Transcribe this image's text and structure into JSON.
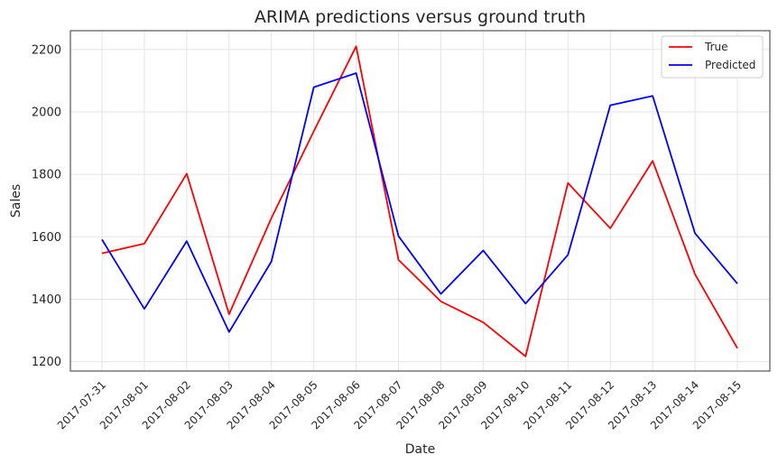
{
  "chart_data": {
    "type": "line",
    "title": "ARIMA predictions versus ground truth",
    "xlabel": "Date",
    "ylabel": "Sales",
    "x": [
      "2017-07-31",
      "2017-08-01",
      "2017-08-02",
      "2017-08-03",
      "2017-08-04",
      "2017-08-05",
      "2017-08-06",
      "2017-08-07",
      "2017-08-08",
      "2017-08-09",
      "2017-08-10",
      "2017-08-11",
      "2017-08-12",
      "2017-08-13",
      "2017-08-14",
      "2017-08-15"
    ],
    "yticks": [
      1200,
      1400,
      1600,
      1800,
      2000,
      2200
    ],
    "ylim": [
      1170,
      2260
    ],
    "grid": true,
    "legend_position": "top-right",
    "series": [
      {
        "name": "True",
        "color": "#ff0000",
        "values": [
          1547,
          1578,
          1802,
          1352,
          1660,
          1938,
          2210,
          1526,
          1393,
          1326,
          1217,
          1772,
          1627,
          1843,
          1480,
          1243
        ]
      },
      {
        "name": "Predicted",
        "color": "#0000ff",
        "values": [
          1591,
          1369,
          1586,
          1295,
          1521,
          2079,
          2124,
          1602,
          1417,
          1556,
          1386,
          1542,
          2021,
          2051,
          1611,
          1450
        ]
      }
    ]
  }
}
